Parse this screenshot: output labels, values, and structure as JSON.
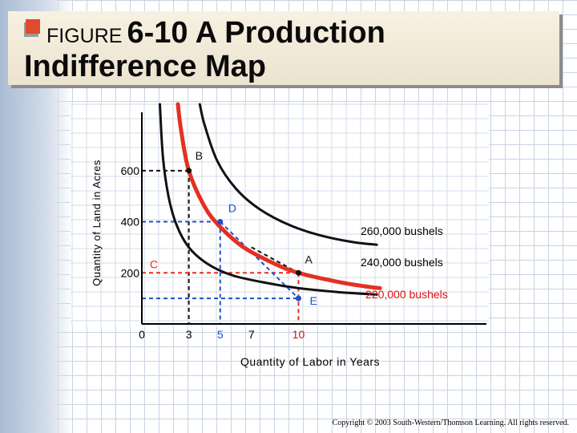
{
  "slide": {
    "title_prefix": "FIGURE",
    "title_main": "6-10 A Production",
    "title_line2": "Indifference Map",
    "copyright": "Copyright © 2003 South-Western/Thomson Learning. All rights reserved."
  },
  "chart_data": {
    "type": "line",
    "title": "FIGURE 6-10 A Production Indifference Map",
    "xlabel": "Quantity of Labor in Years",
    "ylabel": "Quantity of Land in Acres",
    "x_ticks": [
      {
        "label": "0",
        "value": 0,
        "color": "#000000"
      },
      {
        "label": "3",
        "value": 3,
        "color": "#000000"
      },
      {
        "label": "5",
        "value": 5,
        "color": "#1f4fc9"
      },
      {
        "label": "7",
        "value": 7,
        "color": "#000000"
      },
      {
        "label": "10",
        "value": 10,
        "color": "#e01010"
      }
    ],
    "y_ticks": [
      {
        "label": "200",
        "value": 200
      },
      {
        "label": "400",
        "value": 400
      },
      {
        "label": "600",
        "value": 600
      }
    ],
    "xlim": [
      0,
      22
    ],
    "ylim": [
      0,
      860
    ],
    "series": [
      {
        "name": "220,000 bushels",
        "color": "#111111",
        "label_color": "#e01010",
        "x": [
          1.15,
          1.35,
          1.7,
          2.2,
          3.0,
          4.2,
          5.8,
          8.0,
          10.0,
          12.5,
          15.0
        ],
        "y": [
          860,
          650,
          500,
          390,
          300,
          235,
          190,
          160,
          140,
          125,
          115
        ]
      },
      {
        "name": "240,000 bushels",
        "color": "#e53020",
        "label_color": "#000000",
        "x": [
          2.3,
          2.5,
          3.0,
          4.0,
          5.0,
          6.5,
          8.5,
          10.0,
          12.5,
          14.5,
          15.2
        ],
        "y": [
          860,
          760,
          600,
          460,
          380,
          300,
          235,
          200,
          165,
          145,
          140
        ]
      },
      {
        "name": "260,000 bushels",
        "color": "#111111",
        "label_color": "#000000",
        "x": [
          3.7,
          4.0,
          4.8,
          6.0,
          7.5,
          9.5,
          11.5,
          13.5,
          15.0
        ],
        "y": [
          860,
          780,
          640,
          530,
          450,
          385,
          345,
          320,
          310
        ]
      }
    ],
    "points": [
      {
        "label": "B",
        "x": 3,
        "y": 600,
        "color": "#111111"
      },
      {
        "label": "D",
        "x": 5,
        "y": 400,
        "color": "#1f4fc9"
      },
      {
        "label": "C",
        "x": 0.2,
        "y": 200,
        "color": "#e53020"
      },
      {
        "label": "A",
        "x": 10,
        "y": 200,
        "color": "#111111"
      },
      {
        "label": "E",
        "x": 10,
        "y": 100,
        "color": "#1f4fc9"
      }
    ],
    "reference_lines": [
      {
        "from": [
          0,
          600
        ],
        "to": [
          3,
          600
        ],
        "style": "dashed",
        "color": "#111111"
      },
      {
        "from": [
          3,
          600
        ],
        "to": [
          3,
          0
        ],
        "style": "dashed",
        "color": "#111111"
      },
      {
        "from": [
          0,
          400
        ],
        "to": [
          5,
          400
        ],
        "style": "dashed",
        "color": "#1f4fc9"
      },
      {
        "from": [
          5,
          400
        ],
        "to": [
          5,
          0
        ],
        "style": "dashed",
        "color": "#1f4fc9"
      },
      {
        "from": [
          0,
          200
        ],
        "to": [
          10,
          200
        ],
        "style": "dashed",
        "color": "#e53020"
      },
      {
        "from": [
          10,
          200
        ],
        "to": [
          10,
          0
        ],
        "style": "dashed",
        "color": "#e53020"
      },
      {
        "from": [
          0,
          100
        ],
        "to": [
          10,
          100
        ],
        "style": "dashed",
        "color": "#1f4fc9"
      },
      {
        "from": [
          5,
          400
        ],
        "to": [
          10,
          100
        ],
        "style": "dashed",
        "color": "#1f4fc9"
      },
      {
        "from": [
          7,
          300
        ],
        "to": [
          10,
          200
        ],
        "style": "dashed",
        "color": "#111111"
      }
    ],
    "grid": true
  }
}
